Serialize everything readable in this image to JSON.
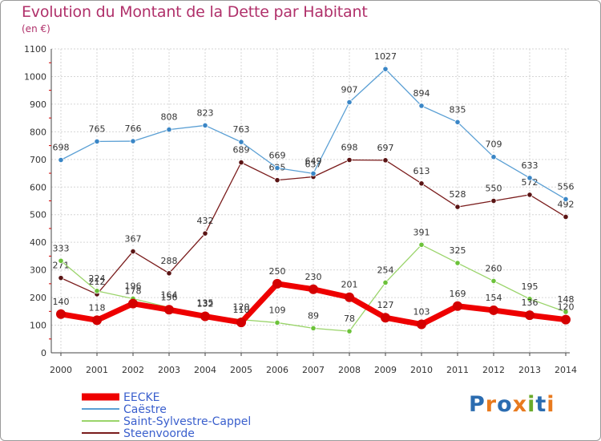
{
  "header": {
    "title": "Evolution du Montant de la Dette par Habitant",
    "unit": "(en €)"
  },
  "logo": {
    "text": "Proxiti",
    "colors": [
      "#2b6cb0",
      "#e87a1e",
      "#2b6cb0",
      "#e87a1e",
      "#6aaa2a",
      "#2b6cb0",
      "#e87a1e"
    ]
  },
  "chart_data": {
    "type": "line",
    "title": "Evolution du Montant de la Dette par Habitant",
    "subtitle": "(en €)",
    "x": [
      "2000",
      "2001",
      "2002",
      "2003",
      "2004",
      "2005",
      "2006",
      "2007",
      "2008",
      "2009",
      "2010",
      "2011",
      "2012",
      "2013",
      "2014"
    ],
    "ylim": [
      0,
      1100
    ],
    "yticks": [
      "0",
      "100",
      "200",
      "300",
      "400",
      "500",
      "600",
      "700",
      "800",
      "900",
      "1000",
      "1100"
    ],
    "grid": true,
    "legend": "bottom-left",
    "series": [
      {
        "name": "Steenvoorde",
        "color": "#7a1c1c",
        "marker": "#5a1414",
        "emphasis": false,
        "values": [
          271,
          212,
          367,
          288,
          432,
          689,
          625,
          637,
          698,
          697,
          613,
          528,
          550,
          572,
          492
        ],
        "labels": [
          "271",
          "212",
          "367",
          "288",
          "432",
          "689",
          "625",
          "637",
          "698",
          "697",
          "613",
          "528",
          "550",
          "572",
          "492"
        ]
      },
      {
        "name": "Saint-Sylvestre-Cappel",
        "color": "#9ad46a",
        "marker": "#6cc23a",
        "emphasis": false,
        "values": [
          333,
          224,
          196,
          164,
          135,
          120,
          109,
          89,
          78,
          254,
          391,
          325,
          260,
          195,
          148
        ],
        "labels": [
          "333",
          "224",
          "196",
          "164",
          "135",
          "120",
          "109",
          "89",
          "78",
          "254",
          "391",
          "325",
          "260",
          "195",
          "148"
        ]
      },
      {
        "name": "Caëstre",
        "color": "#5a9fd4",
        "marker": "#3a86c6",
        "emphasis": false,
        "values": [
          698,
          765,
          766,
          808,
          823,
          763,
          669,
          649,
          907,
          1027,
          894,
          835,
          709,
          633,
          556
        ],
        "labels": [
          "698",
          "765",
          "766",
          "808",
          "823",
          "763",
          "669",
          "649",
          "907",
          "1027",
          "894",
          "835",
          "709",
          "633",
          "556"
        ]
      },
      {
        "name": "EECKE",
        "color": "#ee0000",
        "marker": "#d40000",
        "emphasis": true,
        "values": [
          140,
          118,
          178,
          156,
          132,
          110,
          250,
          230,
          201,
          127,
          103,
          169,
          154,
          136,
          120
        ],
        "labels": [
          "140",
          "118",
          "178",
          "156",
          "132",
          "110",
          "250",
          "230",
          "201",
          "127",
          "103",
          "169",
          "154",
          "136",
          "120"
        ]
      }
    ],
    "legend_entries": [
      "EECKE",
      "Caëstre",
      "Saint-Sylvestre-Cappel",
      "Steenvoorde"
    ]
  }
}
